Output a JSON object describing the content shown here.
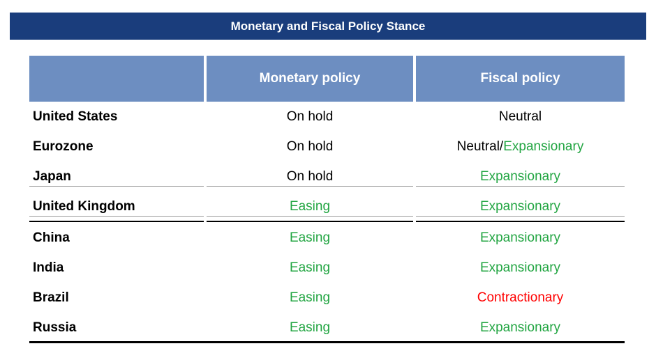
{
  "title": "Monetary and Fiscal Policy Stance",
  "headers": {
    "country": "",
    "monetary": "Monetary policy",
    "fiscal": "Fiscal policy"
  },
  "rows": [
    {
      "country": "United States",
      "monetary": "On hold",
      "monetary_color": "#000000",
      "fiscal": [
        {
          "text": "Neutral",
          "color": "#000000"
        }
      ]
    },
    {
      "country": "Eurozone",
      "monetary": "On hold",
      "monetary_color": "#000000",
      "fiscal": [
        {
          "text": "Neutral/",
          "color": "#000000"
        },
        {
          "text": "Expansionary",
          "color": "#22a542"
        }
      ]
    },
    {
      "country": "Japan",
      "monetary": "On hold",
      "monetary_color": "#000000",
      "fiscal": [
        {
          "text": "Expansionary",
          "color": "#22a542"
        }
      ]
    },
    {
      "country": "United Kingdom",
      "monetary": "Easing",
      "monetary_color": "#22a542",
      "fiscal": [
        {
          "text": "Expansionary",
          "color": "#22a542"
        }
      ]
    },
    {
      "country": "China",
      "monetary": "Easing",
      "monetary_color": "#22a542",
      "fiscal": [
        {
          "text": "Expansionary",
          "color": "#22a542"
        }
      ]
    },
    {
      "country": "India",
      "monetary": "Easing",
      "monetary_color": "#22a542",
      "fiscal": [
        {
          "text": "Expansionary",
          "color": "#22a542"
        }
      ]
    },
    {
      "country": "Brazil",
      "monetary": "Easing",
      "monetary_color": "#22a542",
      "fiscal": [
        {
          "text": "Contractionary",
          "color": "#ff0000"
        }
      ]
    },
    {
      "country": "Russia",
      "monetary": "Easing",
      "monetary_color": "#22a542",
      "fiscal": [
        {
          "text": "Expansionary",
          "color": "#22a542"
        }
      ]
    }
  ],
  "colors": {
    "title_bg": "#1a3d7c",
    "header_bg": "#6d8ec1",
    "easing": "#22a542",
    "contractionary": "#ff0000"
  }
}
